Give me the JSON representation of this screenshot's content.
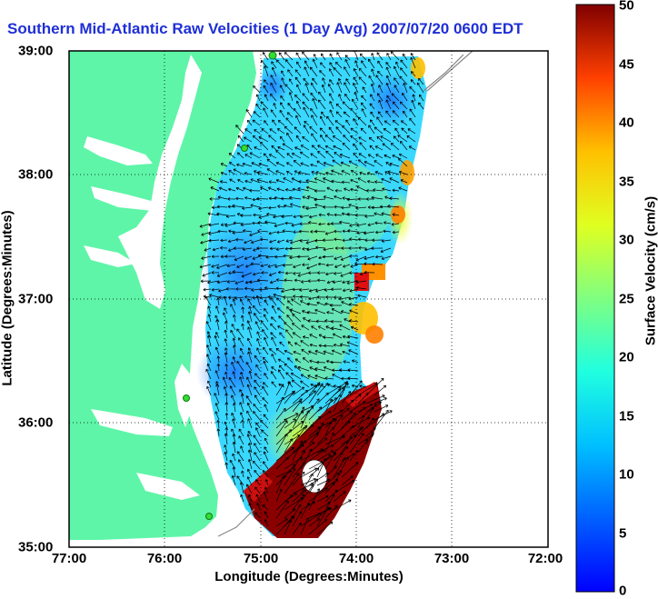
{
  "map": {
    "title": "Southern Mid-Atlantic Raw Velocities (1 Day Avg) 2007/07/20 0600 EDT",
    "xlabel": "Longitude (Degrees:Minutes)",
    "ylabel": "Latitude (Degrees:Minutes)",
    "x_ticks": [
      "77:00",
      "76:00",
      "75:00",
      "74:00",
      "73:00",
      "72:00"
    ],
    "y_ticks": [
      "39:00",
      "38:00",
      "37:00",
      "36:00",
      "35:00"
    ],
    "lon_range": [
      -77,
      -72
    ],
    "lat_range": [
      35,
      39
    ],
    "grid": true
  },
  "colorbar": {
    "label": "Surface Velocity (cm/s)",
    "ticks": [
      "50",
      "45",
      "40",
      "35",
      "30",
      "25",
      "20",
      "15",
      "10",
      "5",
      "0"
    ],
    "range": [
      0,
      50
    ],
    "colormap": "jet"
  },
  "colors": {
    "land": "#5ef5a8",
    "water": "#ffffff",
    "title": "#1f2fd6",
    "arrows": "#000000",
    "station_marker": "#33dd33"
  }
}
